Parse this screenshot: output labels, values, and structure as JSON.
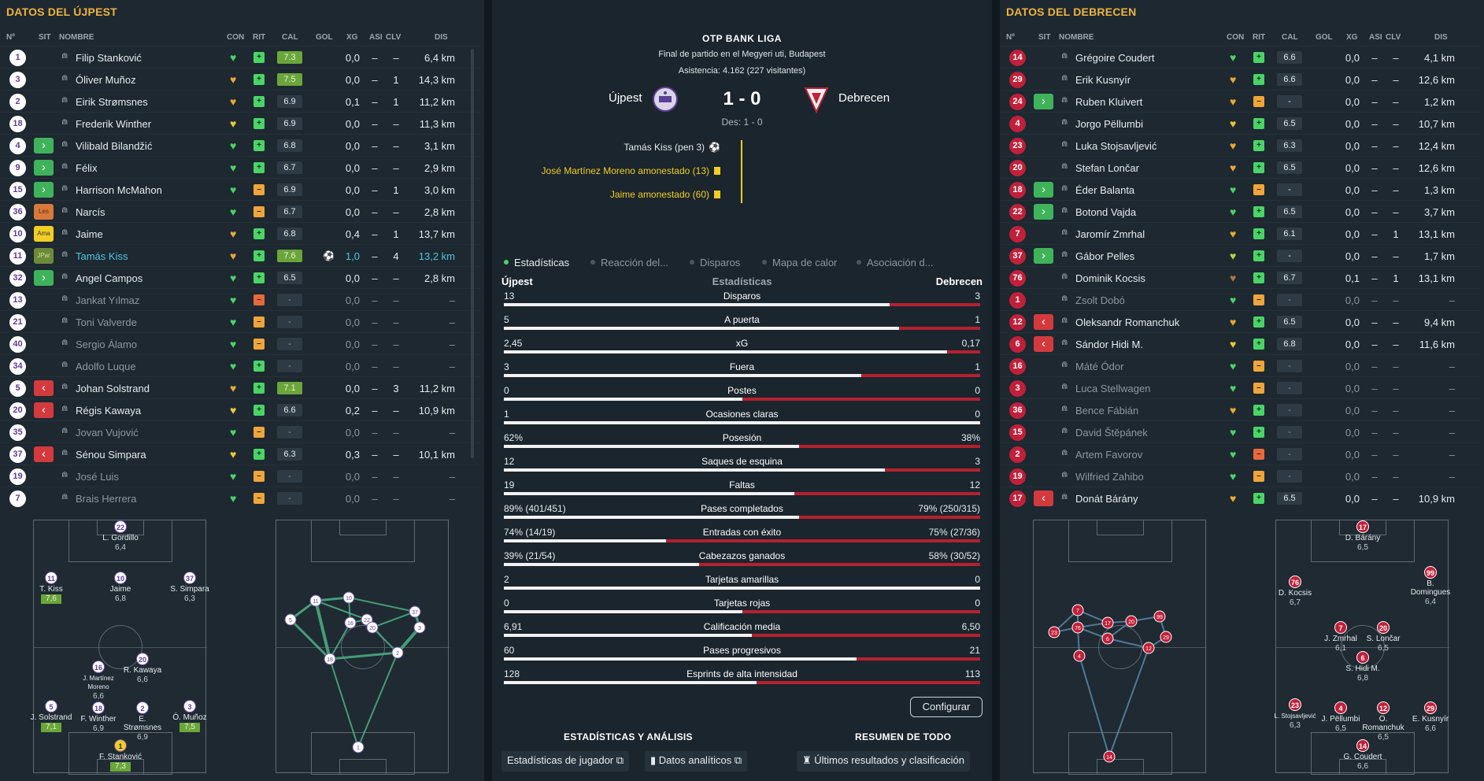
{
  "left": {
    "title": "DATOS DEL ÚJPEST",
    "headers": {
      "num": "Nº",
      "sit": "SIT",
      "name": "NOMBRE",
      "con": "CON",
      "rit": "RIT",
      "cal": "CAL",
      "gol": "GOL",
      "xg": "XG",
      "asi": "ASI",
      "clv": "CLV",
      "dis": "DIS"
    },
    "players": [
      {
        "num": "1",
        "sit": "",
        "name": "Filip Stanković",
        "con": "g",
        "rit": "g",
        "cal": "7.3",
        "cal_hi": true,
        "gol": "",
        "xg": "0,0",
        "asi": "–",
        "clv": "–",
        "dis": "6,4 km"
      },
      {
        "num": "3",
        "sit": "",
        "name": "Óliver Muñoz",
        "con": "o",
        "rit": "g",
        "cal": "7.5",
        "cal_hi": true,
        "gol": "",
        "xg": "0,0",
        "asi": "–",
        "clv": "1",
        "dis": "14,3 km"
      },
      {
        "num": "2",
        "sit": "",
        "name": "Eirik Strømsnes",
        "con": "o",
        "rit": "g",
        "cal": "6.9",
        "gol": "",
        "xg": "0,1",
        "asi": "–",
        "clv": "1",
        "dis": "11,2 km"
      },
      {
        "num": "18",
        "sit": "",
        "name": "Frederik Winther",
        "con": "y",
        "rit": "g",
        "cal": "6.9",
        "gol": "",
        "xg": "0,0",
        "asi": "–",
        "clv": "–",
        "dis": "11,3 km"
      },
      {
        "num": "4",
        "sit": "in",
        "name": "Vilibald Bilandžić",
        "con": "g",
        "rit": "g",
        "cal": "6.8",
        "gol": "",
        "xg": "0,0",
        "asi": "–",
        "clv": "–",
        "dis": "3,1 km"
      },
      {
        "num": "9",
        "sit": "in",
        "name": "Félix",
        "con": "g",
        "rit": "g",
        "cal": "6.7",
        "gol": "",
        "xg": "0,0",
        "asi": "–",
        "clv": "–",
        "dis": "2,9 km"
      },
      {
        "num": "15",
        "sit": "in",
        "name": "Harrison McMahon",
        "con": "g",
        "rit": "o",
        "cal": "6.9",
        "gol": "",
        "xg": "0,0",
        "asi": "–",
        "clv": "1",
        "dis": "3,0 km"
      },
      {
        "num": "36",
        "sit": "les",
        "sit_label": "Les",
        "name": "Narcís",
        "con": "g",
        "rit": "o",
        "cal": "6.7",
        "gol": "",
        "xg": "0,0",
        "asi": "–",
        "clv": "–",
        "dis": "2,8 km"
      },
      {
        "num": "10",
        "sit": "ama",
        "sit_label": "Ama",
        "name": "Jaime",
        "con": "o",
        "rit": "g",
        "cal": "6.8",
        "gol": "",
        "xg": "0,4",
        "asi": "–",
        "clv": "1",
        "dis": "13,7 km"
      },
      {
        "num": "11",
        "sit": "par",
        "sit_label": "JPar",
        "name": "Tamás Kiss",
        "con": "o",
        "rit": "g",
        "cal": "7.6",
        "cal_hi": true,
        "gol": "⚽",
        "xg": "1,0",
        "asi": "–",
        "clv": "4",
        "dis": "13,2 km",
        "selected": true
      },
      {
        "num": "32",
        "sit": "in",
        "name": "Angel Campos",
        "con": "g",
        "rit": "g",
        "cal": "6.5",
        "gol": "",
        "xg": "0,0",
        "asi": "–",
        "clv": "–",
        "dis": "2,8 km"
      },
      {
        "num": "13",
        "sit": "",
        "name": "Jankat Yılmaz",
        "con": "g",
        "rit": "r",
        "cal": "-",
        "gol": "",
        "xg": "0,0",
        "asi": "–",
        "clv": "–",
        "dis": "–",
        "dim": true
      },
      {
        "num": "21",
        "sit": "",
        "name": "Toni Valverde",
        "con": "g",
        "rit": "o",
        "cal": "-",
        "gol": "",
        "xg": "0,0",
        "asi": "–",
        "clv": "–",
        "dis": "–",
        "dim": true
      },
      {
        "num": "40",
        "sit": "",
        "name": "Sergio Álamo",
        "con": "g",
        "rit": "o",
        "cal": "-",
        "gol": "",
        "xg": "0,0",
        "asi": "–",
        "clv": "–",
        "dis": "–",
        "dim": true
      },
      {
        "num": "34",
        "sit": "",
        "name": "Adolfo Luque",
        "con": "g",
        "rit": "g",
        "cal": "-",
        "gol": "",
        "xg": "0,0",
        "asi": "–",
        "clv": "–",
        "dis": "–",
        "dim": true
      },
      {
        "num": "5",
        "sit": "out",
        "name": "Johan Solstrand",
        "con": "o",
        "rit": "g",
        "cal": "7.1",
        "cal_hi": true,
        "gol": "",
        "xg": "0,0",
        "asi": "–",
        "clv": "3",
        "dis": "11,2 km"
      },
      {
        "num": "20",
        "sit": "out",
        "name": "Régis Kawaya",
        "con": "y",
        "rit": "g",
        "cal": "6.6",
        "gol": "",
        "xg": "0,2",
        "asi": "–",
        "clv": "–",
        "dis": "10,9 km"
      },
      {
        "num": "35",
        "sit": "",
        "name": "Jovan Vujović",
        "con": "g",
        "rit": "o",
        "cal": "-",
        "gol": "",
        "xg": "0,0",
        "asi": "–",
        "clv": "–",
        "dis": "–",
        "dim": true
      },
      {
        "num": "37",
        "sit": "out",
        "name": "Sénou Simpara",
        "con": "y",
        "rit": "g",
        "cal": "6.3",
        "gol": "",
        "xg": "0,3",
        "asi": "–",
        "clv": "–",
        "dis": "10,1 km"
      },
      {
        "num": "19",
        "sit": "",
        "name": "José Luis",
        "con": "g",
        "rit": "o",
        "cal": "-",
        "gol": "",
        "xg": "0,0",
        "asi": "–",
        "clv": "–",
        "dis": "–",
        "dim": true
      },
      {
        "num": "7",
        "sit": "",
        "name": "Brais Herrera",
        "con": "g",
        "rit": "o",
        "cal": "-",
        "gol": "",
        "xg": "0,0",
        "asi": "–",
        "clv": "–",
        "dis": "–",
        "dim": true
      }
    ],
    "formation": [
      {
        "num": "22",
        "name": "L. Gordillo",
        "rating": "6,4"
      },
      {
        "num": "11",
        "name": "T. Kiss",
        "rating": "7,6",
        "hi": true
      },
      {
        "num": "10",
        "name": "Jaime",
        "rating": "6,8"
      },
      {
        "num": "37",
        "name": "S. Simpara",
        "rating": "6,3"
      },
      {
        "num": "16",
        "name": "J. Martínez Moreno",
        "rating": "6,6"
      },
      {
        "num": "20",
        "name": "R. Kawaya",
        "rating": "6,6"
      },
      {
        "num": "5",
        "name": "J. Solstrand",
        "rating": "7,1",
        "hi": true
      },
      {
        "num": "18",
        "name": "F. Winther",
        "rating": "6,9"
      },
      {
        "num": "2",
        "name": "E. Strømsnes",
        "rating": "6,9"
      },
      {
        "num": "3",
        "name": "Ó. Muñoz",
        "rating": "7,5",
        "hi": true
      },
      {
        "num": "1",
        "name": "F. Stanković",
        "rating": "7,3",
        "hi": true,
        "gk": true
      }
    ],
    "network_nodes": [
      "5",
      "11",
      "10",
      "16",
      "22",
      "20",
      "37",
      "3",
      "18",
      "2",
      "1"
    ]
  },
  "right": {
    "title": "DATOS DEL DEBRECEN",
    "players": [
      {
        "num": "14",
        "sit": "",
        "name": "Grégoire Coudert",
        "con": "g",
        "rit": "g",
        "cal": "6.6",
        "xg": "0,0",
        "asi": "–",
        "clv": "–",
        "dis": "4,1 km"
      },
      {
        "num": "29",
        "sit": "",
        "name": "Erik Kusnyír",
        "con": "o",
        "rit": "g",
        "cal": "6.6",
        "xg": "0,0",
        "asi": "–",
        "clv": "–",
        "dis": "12,6 km"
      },
      {
        "num": "24",
        "sit": "in",
        "name": "Ruben Kluivert",
        "con": "o",
        "rit": "o",
        "cal": "-",
        "xg": "0,0",
        "asi": "–",
        "clv": "–",
        "dis": "1,2 km"
      },
      {
        "num": "4",
        "sit": "",
        "name": "Jorgo Pëllumbi",
        "con": "y",
        "rit": "g",
        "cal": "6.5",
        "xg": "0,0",
        "asi": "–",
        "clv": "–",
        "dis": "10,7 km"
      },
      {
        "num": "23",
        "sit": "",
        "name": "Luka Stojsavljević",
        "con": "o",
        "rit": "g",
        "cal": "6.3",
        "xg": "0,0",
        "asi": "–",
        "clv": "–",
        "dis": "12,4 km"
      },
      {
        "num": "20",
        "sit": "",
        "name": "Stefan Lončar",
        "con": "o",
        "rit": "g",
        "cal": "6.5",
        "xg": "0,0",
        "asi": "–",
        "clv": "–",
        "dis": "12,6 km"
      },
      {
        "num": "18",
        "sit": "in",
        "name": "Éder Balanta",
        "con": "g",
        "rit": "o",
        "cal": "-",
        "xg": "0,0",
        "asi": "–",
        "clv": "–",
        "dis": "1,3 km"
      },
      {
        "num": "22",
        "sit": "in",
        "name": "Botond Vajda",
        "con": "g",
        "rit": "g",
        "cal": "6.5",
        "xg": "0,0",
        "asi": "–",
        "clv": "–",
        "dis": "3,7 km"
      },
      {
        "num": "7",
        "sit": "",
        "name": "Jaromír Zmrhal",
        "con": "o",
        "rit": "g",
        "cal": "6.1",
        "xg": "0,0",
        "asi": "–",
        "clv": "1",
        "dis": "13,1 km"
      },
      {
        "num": "37",
        "sit": "in",
        "name": "Gábor Pelles",
        "con": "yg",
        "rit": "g",
        "cal": "-",
        "xg": "0,0",
        "asi": "–",
        "clv": "–",
        "dis": "1,7 km"
      },
      {
        "num": "76",
        "sit": "",
        "name": "Dominik Kocsis",
        "con": "b",
        "rit": "g",
        "cal": "6.7",
        "xg": "0,1",
        "asi": "–",
        "clv": "1",
        "dis": "13,1 km"
      },
      {
        "num": "1",
        "sit": "",
        "name": "Zsolt Dobó",
        "con": "g",
        "rit": "o",
        "cal": "-",
        "xg": "0,0",
        "asi": "–",
        "clv": "–",
        "dis": "–",
        "dim": true
      },
      {
        "num": "12",
        "sit": "out",
        "name": "Oleksandr Romanchuk",
        "con": "o",
        "rit": "g",
        "cal": "6.5",
        "xg": "0,0",
        "asi": "–",
        "clv": "–",
        "dis": "9,4 km"
      },
      {
        "num": "6",
        "sit": "out",
        "name": "Sándor Hidi M.",
        "con": "y",
        "rit": "g",
        "cal": "6.8",
        "xg": "0,0",
        "asi": "–",
        "clv": "–",
        "dis": "11,6 km"
      },
      {
        "num": "16",
        "sit": "",
        "name": "Máté Ódor",
        "con": "g",
        "rit": "o",
        "cal": "-",
        "xg": "0,0",
        "asi": "–",
        "clv": "–",
        "dis": "–",
        "dim": true
      },
      {
        "num": "3",
        "sit": "",
        "name": "Luca Stellwagen",
        "con": "g",
        "rit": "o",
        "cal": "-",
        "xg": "0,0",
        "asi": "–",
        "clv": "–",
        "dis": "–",
        "dim": true
      },
      {
        "num": "36",
        "sit": "",
        "name": "Bence Fábián",
        "con": "o",
        "rit": "g",
        "cal": "-",
        "xg": "0,0",
        "asi": "–",
        "clv": "–",
        "dis": "–",
        "dim": true
      },
      {
        "num": "15",
        "sit": "",
        "name": "David Štěpánek",
        "con": "g",
        "rit": "g",
        "cal": "-",
        "xg": "0,0",
        "asi": "–",
        "clv": "–",
        "dis": "–",
        "dim": true
      },
      {
        "num": "2",
        "sit": "",
        "name": "Artem Favorov",
        "con": "g",
        "rit": "r",
        "cal": "-",
        "xg": "0,0",
        "asi": "–",
        "clv": "–",
        "dis": "–",
        "dim": true
      },
      {
        "num": "19",
        "sit": "",
        "name": "Wilfried Zahibo",
        "con": "g",
        "rit": "o",
        "cal": "-",
        "xg": "0,0",
        "asi": "–",
        "clv": "–",
        "dis": "–",
        "dim": true
      },
      {
        "num": "17",
        "sit": "out",
        "name": "Donát Bárány",
        "con": "o",
        "rit": "g",
        "cal": "6.5",
        "xg": "0,0",
        "asi": "–",
        "clv": "–",
        "dis": "10,9 km"
      }
    ],
    "formation": [
      {
        "num": "17",
        "name": "D. Bárány",
        "rating": "6,5"
      },
      {
        "num": "76",
        "name": "D. Kocsis",
        "rating": "6,7"
      },
      {
        "num": "99",
        "name": "B. Domingues",
        "rating": "6,4"
      },
      {
        "num": "7",
        "name": "J. Zmrhal",
        "rating": "6,1"
      },
      {
        "num": "20",
        "name": "S. Lončar",
        "rating": "6,5"
      },
      {
        "num": "6",
        "name": "S. Hidi M.",
        "rating": "6,8"
      },
      {
        "num": "23",
        "name": "L. Stojsavljević",
        "rating": "6,3"
      },
      {
        "num": "4",
        "name": "J. Pëllumbi",
        "rating": "6,5"
      },
      {
        "num": "12",
        "name": "O. Romanchuk",
        "rating": "6,5"
      },
      {
        "num": "29",
        "name": "E. Kusnyír",
        "rating": "6,6"
      },
      {
        "num": "14",
        "name": "G. Coudert",
        "rating": "6,6",
        "gk": true
      }
    ],
    "network_nodes": [
      "7",
      "23",
      "76",
      "17",
      "6",
      "20",
      "99",
      "29",
      "12",
      "4",
      "14"
    ]
  },
  "match": {
    "league": "OTP BANK LIGA",
    "venue": "Final de partido en el Megyeri uti, Budapest",
    "attendance": "Asistencia: 4.162 (227 visitantes)",
    "home": "Újpest",
    "away": "Debrecen",
    "score": "1 - 0",
    "half_time": "Des: 1 - 0",
    "events": [
      {
        "text": "Tamás Kiss (pen 3)",
        "type": "goal"
      },
      {
        "text": "José Martínez Moreno amonestado (13)",
        "type": "card"
      },
      {
        "text": "Jaime amonestado (60)",
        "type": "card"
      }
    ]
  },
  "tabs": [
    "Estadísticas",
    "Reacción del...",
    "Disparos",
    "Mapa de calor",
    "Asociación d..."
  ],
  "stats_header": {
    "home": "Újpest",
    "title": "Estadísticas",
    "away": "Debrecen"
  },
  "stats": [
    {
      "label": "Disparos",
      "home": "13",
      "away": "3",
      "home_share": 0.81
    },
    {
      "label": "A puerta",
      "home": "5",
      "away": "1",
      "home_share": 0.83
    },
    {
      "label": "xG",
      "home": "2,45",
      "away": "0,17",
      "home_share": 0.93
    },
    {
      "label": "Fuera",
      "home": "3",
      "away": "1",
      "home_share": 0.75
    },
    {
      "label": "Postes",
      "home": "0",
      "away": "0",
      "home_share": 0.5
    },
    {
      "label": "Ocasiones claras",
      "home": "1",
      "away": "0",
      "home_share": 1.0
    },
    {
      "label": "Posesión",
      "home": "62%",
      "away": "38%",
      "home_share": 0.62
    },
    {
      "label": "Saques de esquina",
      "home": "12",
      "away": "3",
      "home_share": 0.8
    },
    {
      "label": "Faltas",
      "home": "19",
      "away": "12",
      "home_share": 0.61
    },
    {
      "label": "Pases completados",
      "home": "89% (401/451)",
      "away": "79% (250/315)",
      "home_share": 0.62
    },
    {
      "label": "Entradas con éxito",
      "home": "74% (14/19)",
      "away": "75% (27/36)",
      "home_share": 0.34
    },
    {
      "label": "Cabezazos ganados",
      "home": "39% (21/54)",
      "away": "58% (30/52)",
      "home_share": 0.41
    },
    {
      "label": "Tarjetas amarillas",
      "home": "2",
      "away": "0",
      "home_share": 1.0
    },
    {
      "label": "Tarjetas rojas",
      "home": "0",
      "away": "0",
      "home_share": 0.5
    },
    {
      "label": "Calificación media",
      "home": "6,91",
      "away": "6,50",
      "home_share": 0.52
    },
    {
      "label": "Pases progresivos",
      "home": "60",
      "away": "21",
      "home_share": 0.74
    },
    {
      "label": "Esprints de alta intensidad",
      "home": "128",
      "away": "113",
      "home_share": 0.53
    }
  ],
  "buttons": {
    "configurar": "Configurar",
    "section_left": "ESTADÍSTICAS Y ANÁLISIS",
    "section_right": "RESUMEN DE TODO",
    "player_stats": "Estadísticas de jugador",
    "analytics": "Datos analíticos",
    "results": "Últimos resultados y clasificación"
  },
  "colors": {
    "accent": "#f0b43c",
    "home": "#5b3e96",
    "away": "#c0203a",
    "good": "#4ad466",
    "card": "#f2cd25"
  }
}
